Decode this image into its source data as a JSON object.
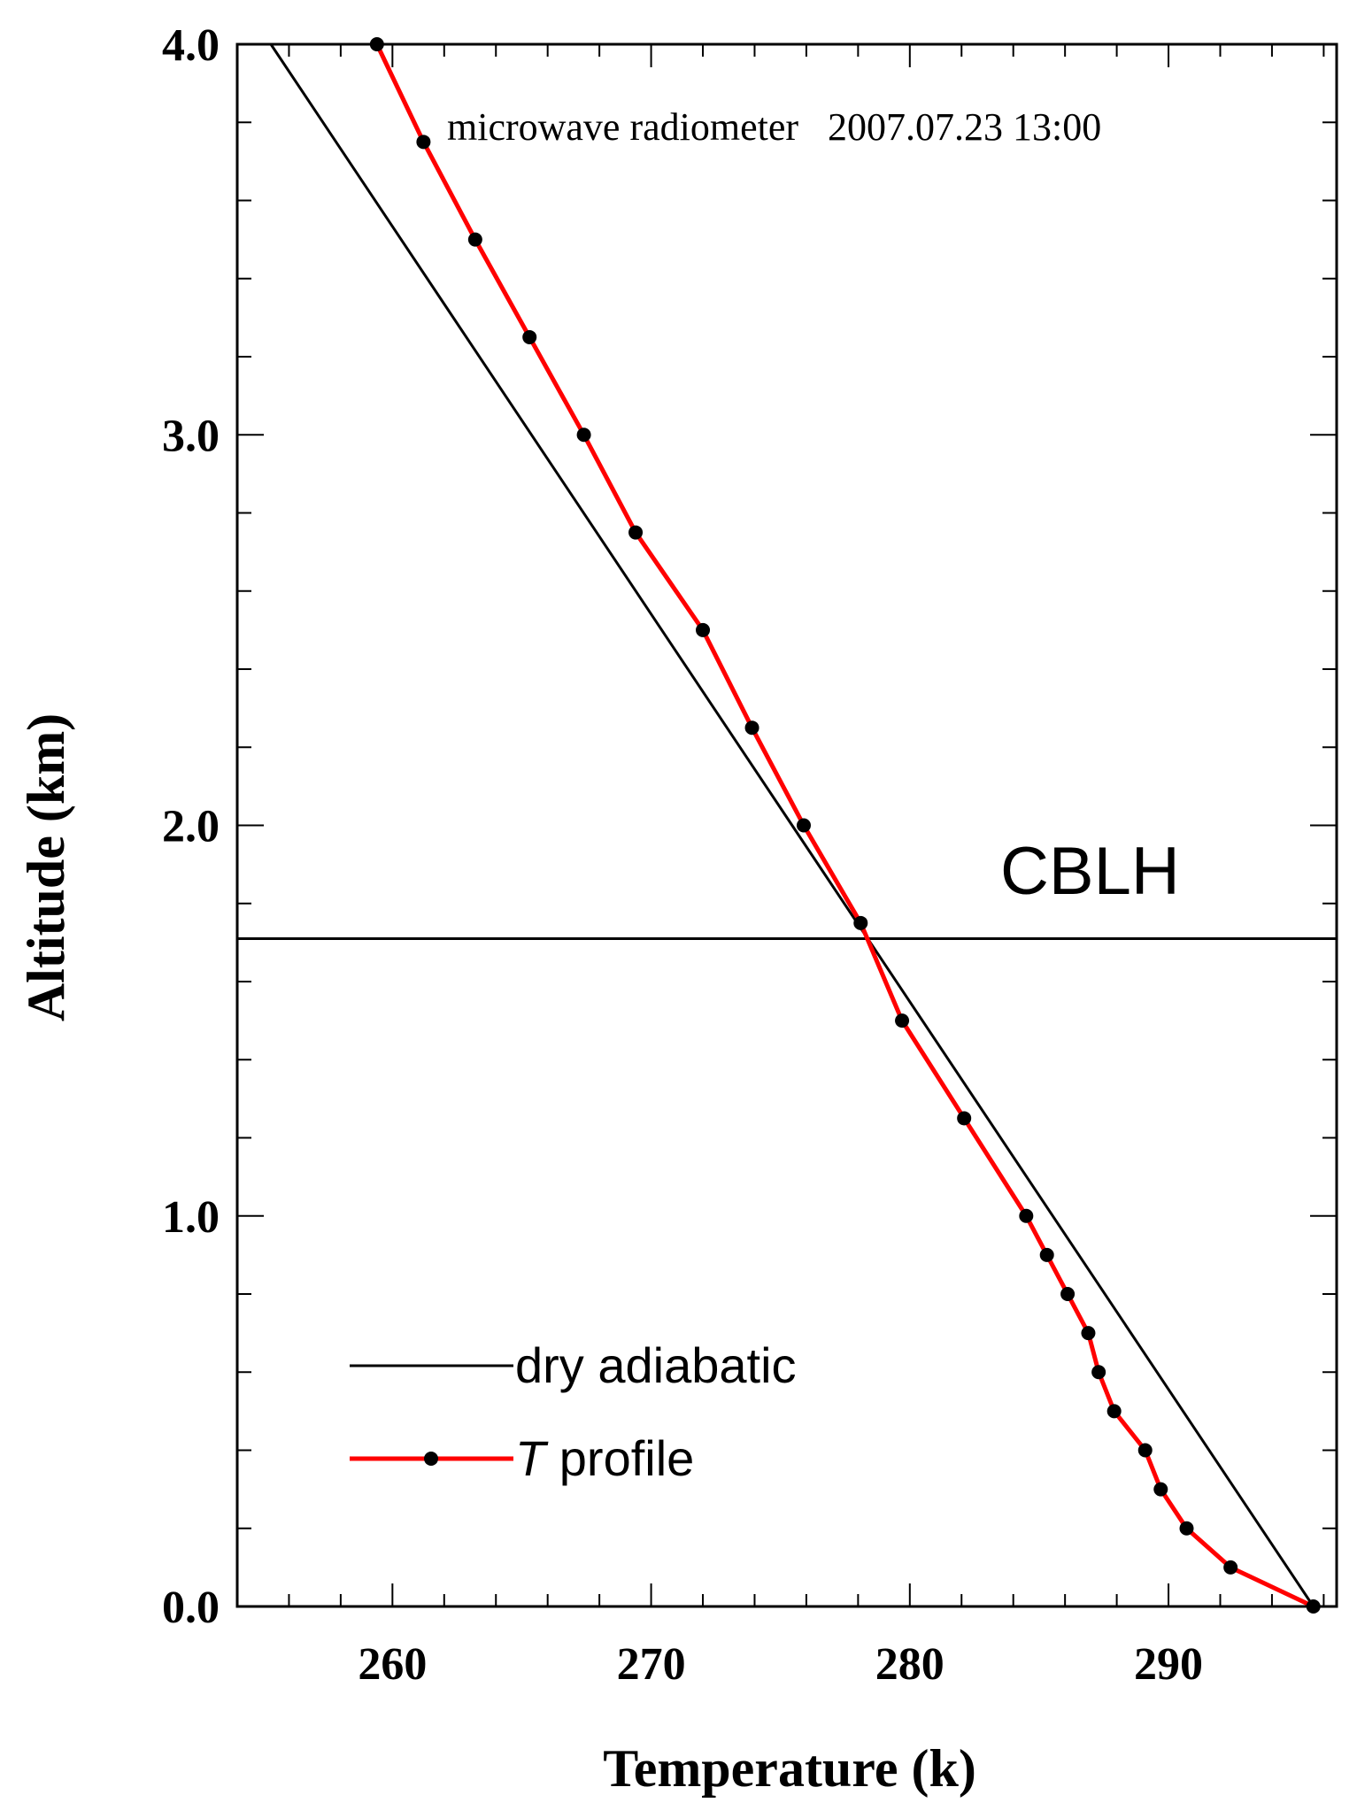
{
  "chart_data": {
    "type": "line",
    "title": "",
    "annotation_top": "microwave radiometer   2007.07.23 13:00",
    "annotation_cblh": "CBLH",
    "xlabel": "Temperature (k)",
    "ylabel": "Altitude (km)",
    "xlim": [
      254,
      296.5
    ],
    "ylim": [
      0,
      4.0
    ],
    "xticks": [
      260,
      270,
      280,
      290
    ],
    "yticks": [
      0.0,
      1.0,
      2.0,
      3.0,
      4.0
    ],
    "ytick_labels": [
      "0.0",
      "1.0",
      "2.0",
      "3.0",
      "4.0"
    ],
    "cblh_altitude": 1.71,
    "legend": {
      "placement": "bottom-left",
      "dry_label": "dry adiabatic",
      "t_label_italic": "T",
      "t_label_rest": " profile"
    },
    "series": [
      {
        "name": "dry adiabatic",
        "color": "#000000",
        "points": [
          [
            255.3,
            4.0
          ],
          [
            295.6,
            0.0
          ]
        ]
      },
      {
        "name": "T profile",
        "color": "#ff0000",
        "marker_color": "#000000",
        "points": [
          [
            295.6,
            0.0
          ],
          [
            292.4,
            0.1
          ],
          [
            290.7,
            0.2
          ],
          [
            289.7,
            0.3
          ],
          [
            289.1,
            0.4
          ],
          [
            287.9,
            0.5
          ],
          [
            287.3,
            0.6
          ],
          [
            286.9,
            0.7
          ],
          [
            286.1,
            0.8
          ],
          [
            285.3,
            0.9
          ],
          [
            284.5,
            1.0
          ],
          [
            282.1,
            1.25
          ],
          [
            279.7,
            1.5
          ],
          [
            278.1,
            1.75
          ],
          [
            275.9,
            2.0
          ],
          [
            273.9,
            2.25
          ],
          [
            272.0,
            2.5
          ],
          [
            269.4,
            2.75
          ],
          [
            267.4,
            3.0
          ],
          [
            265.3,
            3.25
          ],
          [
            263.2,
            3.5
          ],
          [
            261.2,
            3.75
          ],
          [
            259.4,
            4.0
          ]
        ]
      }
    ]
  }
}
